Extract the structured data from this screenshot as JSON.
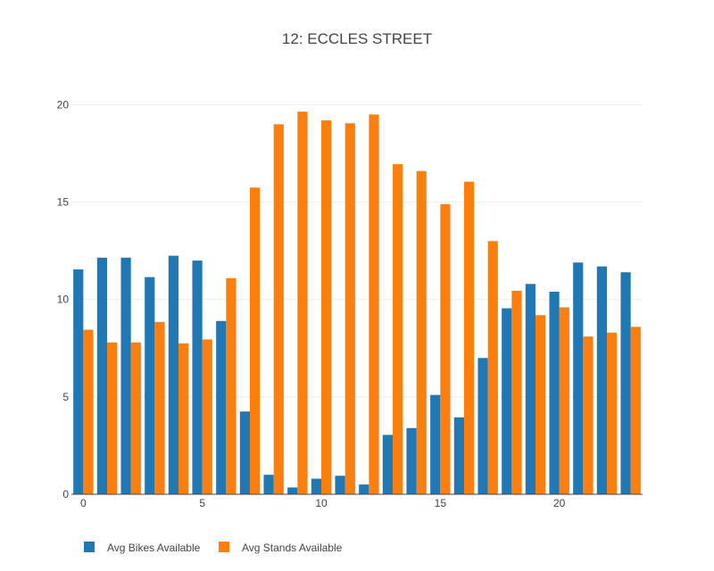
{
  "chart_data": {
    "type": "bar",
    "title": "12: ECCLES STREET",
    "xlabel": "",
    "ylabel": "",
    "x": [
      0,
      1,
      2,
      3,
      4,
      5,
      6,
      7,
      8,
      9,
      10,
      11,
      12,
      13,
      14,
      15,
      16,
      17,
      18,
      19,
      20,
      21,
      22,
      23
    ],
    "xlim": [
      -0.5,
      23.5
    ],
    "ylim": [
      0,
      20.8
    ],
    "x_ticks": [
      0,
      5,
      10,
      15,
      20
    ],
    "y_ticks": [
      0,
      5,
      10,
      15,
      20
    ],
    "grid": true,
    "legend_position": "bottom-left",
    "series": [
      {
        "name": "Avg Bikes Available",
        "color": "#1f77b4",
        "values": [
          11.55,
          12.15,
          12.15,
          11.15,
          12.25,
          12.0,
          8.9,
          4.25,
          1.0,
          0.35,
          0.8,
          0.95,
          0.5,
          3.05,
          3.4,
          5.1,
          3.95,
          7.0,
          9.55,
          10.8,
          10.4,
          11.9,
          11.7,
          11.4
        ]
      },
      {
        "name": "Avg Stands Available",
        "color": "#ff7f0e",
        "values": [
          8.45,
          7.8,
          7.8,
          8.85,
          7.75,
          7.95,
          11.1,
          15.75,
          19.0,
          19.65,
          19.2,
          19.05,
          19.5,
          16.95,
          16.6,
          14.9,
          16.05,
          13.0,
          10.45,
          9.2,
          9.6,
          8.1,
          8.3,
          8.6
        ]
      }
    ]
  }
}
